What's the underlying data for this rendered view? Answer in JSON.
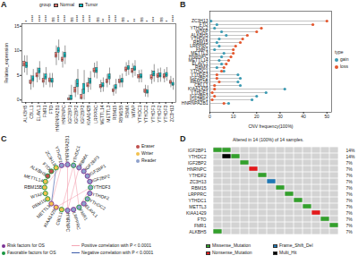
{
  "chart_data": [
    {
      "panel": "A",
      "type": "box",
      "y_label": "Relative_expression",
      "legend_title": "group",
      "categories": [
        "ALKBH5",
        "CBLL1",
        "ELAVL1",
        "FMR1",
        "FTO",
        "HNRNPA2B1",
        "HNRNPC",
        "IGF2BP1",
        "IGF2BP2",
        "IGF2BP3",
        "KIAA1429",
        "LRPPRC",
        "METTL14",
        "METTL3",
        "RBM15",
        "RBM15B",
        "RBMX",
        "WTAP",
        "YTHDC1",
        "YTHDC2",
        "YTHDF1",
        "YTHDF2",
        "YTHDF3",
        "ZC3H13"
      ],
      "significance": [
        "*",
        "****",
        "****",
        "****",
        "ns",
        "****",
        "****",
        "ns",
        "****",
        "****",
        "****",
        "ns",
        "**",
        "****",
        "****",
        "ns",
        "*",
        "**",
        "ns",
        "*",
        "***",
        "ns",
        "*",
        "****"
      ],
      "ylim": [
        -0.5,
        15.5
      ],
      "yticks": [
        0,
        5,
        10,
        15
      ],
      "series": [
        {
          "name": "Normal",
          "color": "#F8766D",
          "boxes": [
            [
              5.5,
              6.8,
              7.3,
              7.8,
              9
            ],
            [
              2,
              3.2,
              3.6,
              4,
              5
            ],
            [
              3.5,
              4.6,
              5,
              5.4,
              6.5
            ],
            [
              2.5,
              3.5,
              3.9,
              4.3,
              5.4
            ],
            [
              2.5,
              3.6,
              4,
              4.4,
              5.4
            ],
            [
              7,
              8.6,
              9.1,
              9.6,
              11
            ],
            [
              6.5,
              7.8,
              8.2,
              8.6,
              9.8
            ],
            [
              0,
              0,
              0.1,
              0.3,
              1
            ],
            [
              0.5,
              1.5,
              2,
              2.5,
              4
            ],
            [
              0,
              0.2,
              0.5,
              1,
              2.2
            ],
            [
              1.5,
              2.6,
              3,
              3.4,
              4.5
            ],
            [
              4.5,
              5.6,
              6,
              6.4,
              7.5
            ],
            [
              1.5,
              2.4,
              2.8,
              3.1,
              4
            ],
            [
              2.5,
              3.4,
              3.8,
              4.2,
              5.2
            ],
            [
              0.8,
              1.6,
              1.9,
              2.2,
              3
            ],
            [
              2.5,
              3.4,
              3.8,
              4.1,
              5
            ],
            [
              4.8,
              5.8,
              6.2,
              6.6,
              7.6
            ],
            [
              4.5,
              5.5,
              5.9,
              6.3,
              7.4
            ],
            [
              3.5,
              4.4,
              4.8,
              5.1,
              6
            ],
            [
              0.6,
              1.4,
              1.8,
              2.1,
              3
            ],
            [
              3.2,
              4.2,
              4.6,
              5,
              6
            ],
            [
              3.5,
              4.5,
              4.9,
              5.3,
              6.3
            ],
            [
              3.5,
              4.4,
              4.8,
              5.2,
              6.2
            ],
            [
              2.5,
              3.3,
              3.6,
              3.9,
              4.8
            ]
          ]
        },
        {
          "name": "Tumor",
          "color": "#00BFC4",
          "boxes": [
            [
              5,
              6.5,
              7,
              7.6,
              9
            ],
            [
              2.5,
              3.8,
              4.3,
              4.8,
              6.2
            ],
            [
              4,
              5.4,
              5.9,
              6.4,
              7.8
            ],
            [
              3,
              4.2,
              4.7,
              5.2,
              6.6
            ],
            [
              2.5,
              3.5,
              3.9,
              4.3,
              5.4
            ],
            [
              8,
              9.6,
              10.1,
              10.6,
              12.2
            ],
            [
              7.2,
              8.6,
              9.1,
              9.6,
              11
            ],
            [
              0,
              0,
              0.2,
              0.9,
              3
            ],
            [
              1,
              2.6,
              3.3,
              4.1,
              6.2
            ],
            [
              0,
              1.2,
              2.2,
              3.3,
              6
            ],
            [
              2,
              3.3,
              3.8,
              4.3,
              5.8
            ],
            [
              4.3,
              5.5,
              6,
              6.5,
              7.8
            ],
            [
              1.6,
              2.6,
              3,
              3.4,
              4.5
            ],
            [
              3,
              4.2,
              4.7,
              5.2,
              6.5
            ],
            [
              1.2,
              2.2,
              2.6,
              3,
              4.2
            ],
            [
              2.5,
              3.5,
              3.9,
              4.3,
              5.3
            ],
            [
              5,
              6.1,
              6.5,
              6.9,
              8
            ],
            [
              4.8,
              5.9,
              6.3,
              6.8,
              8
            ],
            [
              3.5,
              4.4,
              4.8,
              5.2,
              6.1
            ],
            [
              0.5,
              1.3,
              1.6,
              2,
              2.9
            ],
            [
              3.6,
              4.8,
              5.3,
              5.8,
              7.2
            ],
            [
              3.6,
              4.6,
              5,
              5.4,
              6.5
            ],
            [
              3.8,
              4.7,
              5.1,
              5.5,
              6.6
            ],
            [
              2,
              2.9,
              3.2,
              3.5,
              4.4
            ]
          ]
        }
      ]
    },
    {
      "panel": "B",
      "type": "lollipop",
      "orientation": "horizontal",
      "x_label": "CNV frequency(100%)",
      "legend_title": "type",
      "categories": [
        "ZC3H13",
        "FTO",
        "YTHDC2",
        "WTAP",
        "ALKBH5",
        "YTHDF2",
        "RBM15",
        "LRPPRC",
        "FMR1",
        "METTL3",
        "HNRNPC",
        "METTL14",
        "ELAVL1",
        "RBMX",
        "YTHDC1",
        "YTHDF3",
        "IGF2BP2",
        "RBM15B",
        "CBLL1",
        "KIAA1429",
        "YTHDF1",
        "IGF2BP3",
        "IGF2BP1",
        "HNRNPA2B1"
      ],
      "xlim": [
        0,
        52
      ],
      "xticks": [
        0,
        10,
        20,
        30,
        40,
        50
      ],
      "series": [
        {
          "name": "gain",
          "color": "#3B9AB2",
          "values": [
            0.5,
            3,
            2,
            5,
            7,
            4,
            3,
            4,
            2,
            6,
            5,
            4,
            5,
            3,
            6,
            12,
            13,
            12,
            13,
            32,
            24,
            20,
            18,
            8
          ]
        },
        {
          "name": "loss",
          "color": "#E4572E",
          "values": [
            50,
            44,
            22,
            20,
            16,
            14,
            13,
            11,
            10,
            10,
            9,
            8,
            7,
            6,
            5,
            3,
            3,
            4,
            2,
            2,
            1,
            2,
            1,
            6
          ]
        }
      ]
    },
    {
      "panel": "C",
      "type": "network",
      "node_types": [
        {
          "name": "Eraser",
          "color": "#C0504D"
        },
        {
          "name": "Writer",
          "color": "#F2C14E"
        },
        {
          "name": "Reader",
          "color": "#8DA0CB"
        }
      ],
      "factors": [
        {
          "name": "Risk factors for OS",
          "color": "#7B3294"
        },
        {
          "name": "Favorable factors for OS",
          "color": "#1A9641"
        }
      ],
      "edge_types": [
        {
          "name": "Positive correlation with P < 0.0001",
          "sign": "positive",
          "color": "#F4A6B4"
        },
        {
          "name": "Negative correlation with P < 0.0001",
          "sign": "negative",
          "color": "#3B5BA9"
        }
      ],
      "nodes": [
        {
          "name": "HNRNPA2B1",
          "type": "Reader",
          "factor": "Risk factors for OS"
        },
        {
          "name": "YTHDC1",
          "type": "Reader",
          "factor": "Favorable factors for OS"
        },
        {
          "name": "RBMX",
          "type": "Reader",
          "factor": "Risk factors for OS"
        },
        {
          "name": "IGF2BP3",
          "type": "Reader",
          "factor": "Risk factors for OS"
        },
        {
          "name": "IGF2BP1",
          "type": "Reader",
          "factor": "Risk factors for OS"
        },
        {
          "name": "IGF2BP2",
          "type": "Reader",
          "factor": "Risk factors for OS"
        },
        {
          "name": "YTHDF3",
          "type": "Reader",
          "factor": "Favorable factors for OS"
        },
        {
          "name": "YTHDF2",
          "type": "Reader",
          "factor": "Risk factors for OS"
        },
        {
          "name": "YTHDC2",
          "type": "Reader",
          "factor": "Favorable factors for OS"
        },
        {
          "name": "ELAVL1",
          "type": "Reader",
          "factor": "Risk factors for OS"
        },
        {
          "name": "FMR1",
          "type": "Reader",
          "factor": "Favorable factors for OS"
        },
        {
          "name": "LRPPRC",
          "type": "Reader",
          "factor": "Risk factors for OS"
        },
        {
          "name": "HNRNPC",
          "type": "Reader",
          "factor": "Risk factors for OS"
        },
        {
          "name": "CBLL1",
          "type": "Writer",
          "factor": "Favorable factors for OS"
        },
        {
          "name": "KIAA1429",
          "type": "Writer",
          "factor": "Risk factors for OS"
        },
        {
          "name": "METTL3",
          "type": "Writer",
          "factor": "Risk factors for OS"
        },
        {
          "name": "RBM15",
          "type": "Writer",
          "factor": "Favorable factors for OS"
        },
        {
          "name": "WTAP",
          "type": "Writer",
          "factor": "Favorable factors for OS"
        },
        {
          "name": "RBM15B",
          "type": "Writer",
          "factor": "Favorable factors for OS"
        },
        {
          "name": "METTL14",
          "type": "Writer",
          "factor": "Favorable factors for OS"
        },
        {
          "name": "ALKBH5",
          "type": "Eraser",
          "factor": "Favorable factors for OS"
        },
        {
          "name": "FTO",
          "type": "Eraser",
          "factor": "Favorable factors for OS"
        },
        {
          "name": "ZC3H13",
          "type": "Writer",
          "factor": "Favorable factors for OS"
        },
        {
          "name": "YTHDF1",
          "type": "Reader",
          "factor": "Risk factors for OS"
        }
      ],
      "edges": [
        {
          "source": "HNRNPA2B1",
          "target": "YTHDC1",
          "sign": "positive"
        },
        {
          "source": "HNRNPA2B1",
          "target": "HNRNPC",
          "sign": "positive"
        },
        {
          "source": "HNRNPA2B1",
          "target": "RBMX",
          "sign": "positive"
        },
        {
          "source": "YTHDC1",
          "target": "RBMX",
          "sign": "positive"
        },
        {
          "source": "YTHDC1",
          "target": "CBLL1",
          "sign": "positive"
        },
        {
          "source": "YTHDC1",
          "target": "FMR1",
          "sign": "positive"
        },
        {
          "source": "RBMX",
          "target": "HNRNPC",
          "sign": "positive"
        },
        {
          "source": "IGF2BP3",
          "target": "IGF2BP1",
          "sign": "positive"
        },
        {
          "source": "IGF2BP3",
          "target": "IGF2BP2",
          "sign": "positive"
        },
        {
          "source": "IGF2BP2",
          "target": "IGF2BP1",
          "sign": "positive"
        },
        {
          "source": "YTHDF3",
          "target": "YTHDF2",
          "sign": "positive"
        },
        {
          "source": "YTHDF2",
          "target": "ELAVL1",
          "sign": "positive"
        },
        {
          "source": "YTHDC2",
          "target": "FMR1",
          "sign": "positive"
        },
        {
          "source": "ELAVL1",
          "target": "HNRNPC",
          "sign": "positive"
        },
        {
          "source": "FMR1",
          "target": "YTHDF3",
          "sign": "positive"
        },
        {
          "source": "LRPPRC",
          "target": "HNRNPC",
          "sign": "positive"
        },
        {
          "source": "HNRNPC",
          "target": "METTL3",
          "sign": "positive"
        },
        {
          "source": "CBLL1",
          "target": "KIAA1429",
          "sign": "positive"
        },
        {
          "source": "KIAA1429",
          "target": "YTHDF3",
          "sign": "positive"
        },
        {
          "source": "KIAA1429",
          "target": "WTAP",
          "sign": "positive"
        },
        {
          "source": "METTL3",
          "target": "YTHDF1",
          "sign": "positive"
        },
        {
          "source": "RBM15",
          "target": "WTAP",
          "sign": "positive"
        },
        {
          "source": "WTAP",
          "target": "METTL14",
          "sign": "positive"
        },
        {
          "source": "RBM15B",
          "target": "YTHDF1",
          "sign": "positive"
        },
        {
          "source": "METTL14",
          "target": "FTO",
          "sign": "positive"
        },
        {
          "source": "ALKBH5",
          "target": "YTHDF1",
          "sign": "positive"
        },
        {
          "source": "FTO",
          "target": "ZC3H13",
          "sign": "positive"
        },
        {
          "source": "ZC3H13",
          "target": "YTHDC1",
          "sign": "positive"
        },
        {
          "source": "ZC3H13",
          "target": "METTL3",
          "sign": "negative"
        }
      ]
    },
    {
      "panel": "D",
      "type": "oncoprint",
      "title": "Altered in 14 (100%) of 14 samples.",
      "n_samples": 14,
      "mutation_types": [
        {
          "name": "Missense_Mutation",
          "color": "#33A02C"
        },
        {
          "name": "Nonsense_Mutation",
          "color": "#E31A1C"
        },
        {
          "name": "Frame_Shift_Del",
          "color": "#1F78B4"
        },
        {
          "name": "Multi_Hit",
          "color": "#000000"
        }
      ],
      "genes": [
        {
          "name": "IGF2BP1",
          "percent_label": "14%",
          "mutations": [
            [
              0,
              "Missense_Mutation"
            ],
            [
              1,
              "Missense_Mutation"
            ]
          ]
        },
        {
          "name": "YTHDC2",
          "percent_label": "14%",
          "mutations": [
            [
              1,
              "Multi_Hit"
            ],
            [
              2,
              "Missense_Mutation"
            ]
          ]
        },
        {
          "name": "IGF2BP2",
          "percent_label": "7%",
          "mutations": [
            [
              3,
              "Missense_Mutation"
            ]
          ]
        },
        {
          "name": "HNRNPC",
          "percent_label": "7%",
          "mutations": [
            [
              4,
              "Nonsense_Mutation"
            ]
          ]
        },
        {
          "name": "YTHDF2",
          "percent_label": "7%",
          "mutations": [
            [
              5,
              "Missense_Mutation"
            ]
          ]
        },
        {
          "name": "ZC3H13",
          "percent_label": "7%",
          "mutations": [
            [
              6,
              "Frame_Shift_Del"
            ]
          ]
        },
        {
          "name": "RBM15",
          "percent_label": "7%",
          "mutations": [
            [
              7,
              "Missense_Mutation"
            ]
          ]
        },
        {
          "name": "LRPPRC",
          "percent_label": "7%",
          "mutations": [
            [
              8,
              "Missense_Mutation"
            ]
          ]
        },
        {
          "name": "YTHDC1",
          "percent_label": "7%",
          "mutations": [
            [
              9,
              "Missense_Mutation"
            ]
          ]
        },
        {
          "name": "METTL3",
          "percent_label": "7%",
          "mutations": [
            [
              10,
              "Missense_Mutation"
            ]
          ]
        },
        {
          "name": "KIAA1429",
          "percent_label": "7%",
          "mutations": [
            [
              11,
              "Nonsense_Mutation"
            ]
          ]
        },
        {
          "name": "FTO",
          "percent_label": "7%",
          "mutations": [
            [
              12,
              "Missense_Mutation"
            ]
          ]
        },
        {
          "name": "FMR1",
          "percent_label": "7%",
          "mutations": [
            [
              13,
              "Missense_Mutation"
            ]
          ]
        },
        {
          "name": "ALKBH5",
          "percent_label": "7%",
          "mutations": [
            [
              0,
              "Missense_Mutation"
            ]
          ]
        }
      ]
    }
  ]
}
